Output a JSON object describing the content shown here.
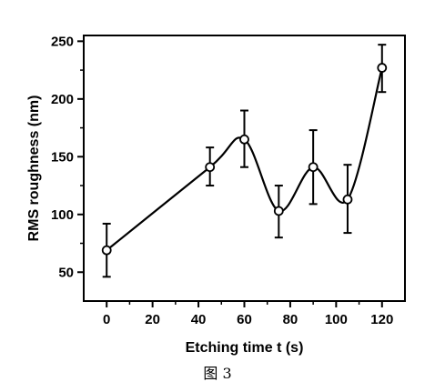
{
  "chart_data": {
    "type": "line",
    "xlabel": "Etching time t (s)",
    "ylabel": "RMS roughness (nm)",
    "xlim": [
      -10,
      130
    ],
    "ylim": [
      25,
      255
    ],
    "xticks": [
      0,
      20,
      40,
      60,
      80,
      100,
      120
    ],
    "yticks": [
      50,
      100,
      150,
      200,
      250
    ],
    "grid": false,
    "legend": "none",
    "marker": "open-circle",
    "curve": "smooth",
    "series": [
      {
        "points": [
          {
            "x": 0,
            "y": 69,
            "err_low": 46,
            "err_high": 92
          },
          {
            "x": 45,
            "y": 141,
            "err_low": 125,
            "err_high": 158
          },
          {
            "x": 60,
            "y": 165,
            "err_low": 141,
            "err_high": 190
          },
          {
            "x": 75,
            "y": 103,
            "err_low": 80,
            "err_high": 125
          },
          {
            "x": 90,
            "y": 141,
            "err_low": 109,
            "err_high": 173
          },
          {
            "x": 105,
            "y": 113,
            "err_low": 84,
            "err_high": 143
          },
          {
            "x": 120,
            "y": 227,
            "err_low": 206,
            "err_high": 247
          }
        ]
      }
    ]
  },
  "caption": "图 3"
}
